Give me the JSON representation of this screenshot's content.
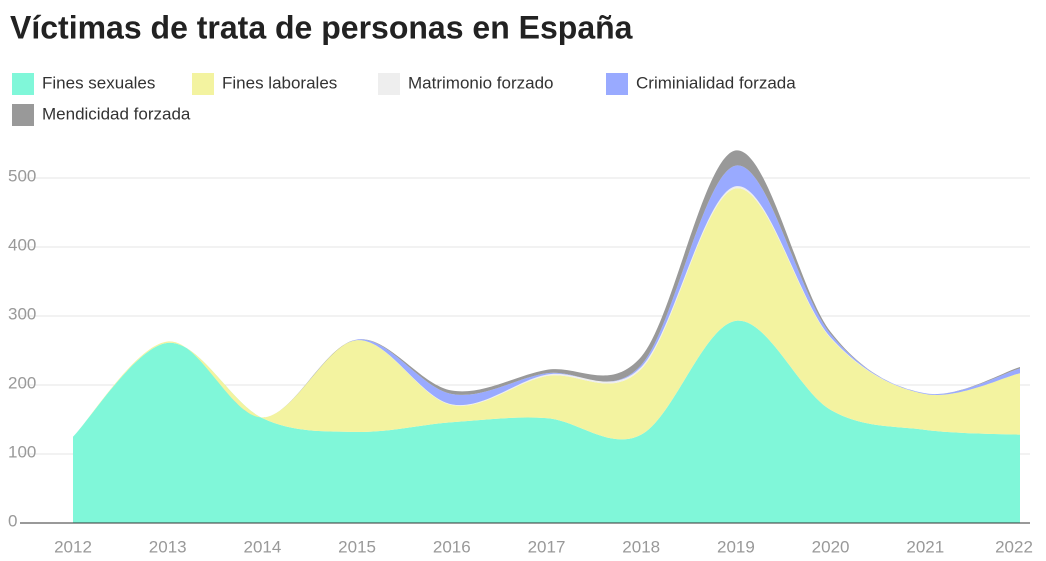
{
  "chart_data": {
    "type": "area",
    "title": "Víctimas de trata de personas en España",
    "x": [
      "2012",
      "2013",
      "2014",
      "2015",
      "2016",
      "2017",
      "2018",
      "2019",
      "2020",
      "2021",
      "2022"
    ],
    "series": [
      {
        "name": "Fines sexuales",
        "color": "#80f7d9",
        "values": [
          125,
          261,
          152,
          132,
          146,
          152,
          128,
          293,
          164,
          135,
          128
        ]
      },
      {
        "name": "Fines laborales",
        "color": "#f3f3a0",
        "values": [
          0,
          2,
          1,
          133,
          25,
          61,
          95,
          192,
          104,
          52,
          89
        ]
      },
      {
        "name": "Matrimonio forzado",
        "color": "#eeeeee",
        "values": [
          0,
          0,
          0,
          0,
          1,
          2,
          3,
          3,
          1,
          0,
          0
        ]
      },
      {
        "name": "Criminialidad forzada",
        "color": "#99aaff",
        "values": [
          0,
          0,
          0,
          1,
          15,
          2,
          3,
          30,
          5,
          1,
          7
        ]
      },
      {
        "name": "Mendicidad forzada",
        "color": "#999999",
        "values": [
          0,
          0,
          0,
          0,
          5,
          5,
          12,
          22,
          3,
          0,
          2
        ]
      }
    ],
    "stacked": true,
    "ylim": [
      0,
      550
    ],
    "yticks": [
      0,
      100,
      200,
      300,
      400,
      500
    ],
    "grid": true
  }
}
